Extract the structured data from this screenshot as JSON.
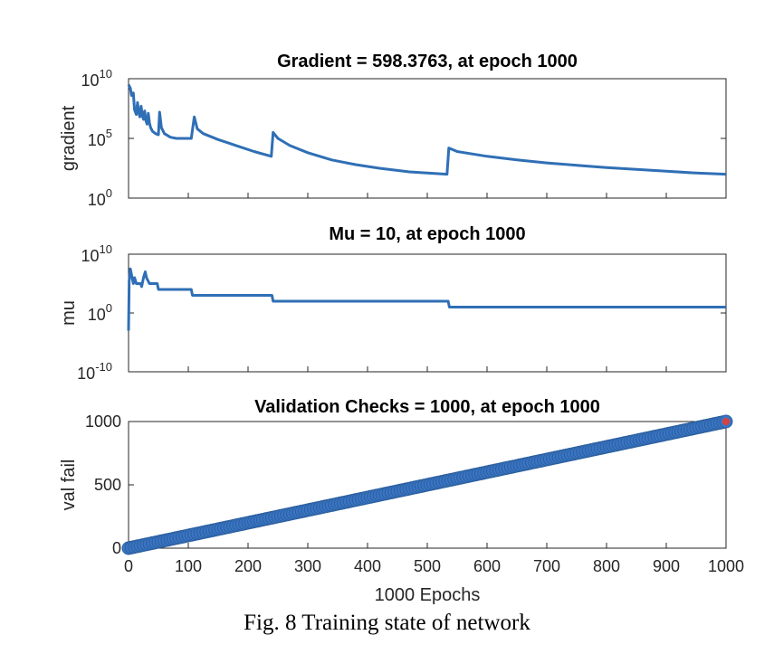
{
  "caption": "Fig. 8 Training state of network",
  "colors": {
    "line": "#2f6fb5",
    "marker": "#3a75c4",
    "last_point": "#d94040",
    "axis": "#262626"
  },
  "chart_data": [
    {
      "type": "line",
      "title": "Gradient = 598.3763, at epoch 1000",
      "ylabel": "gradient",
      "xlabel": "",
      "yscale": "log",
      "xlim": [
        0,
        1000
      ],
      "ylim_exponents": [
        0,
        10
      ],
      "ytick_labels": [
        {
          "base": "10",
          "exp": "0"
        },
        {
          "base": "10",
          "exp": "5"
        },
        {
          "base": "10",
          "exp": "10"
        }
      ],
      "x_tick_labels_visible": false,
      "grid": false,
      "log10_values": [
        [
          0,
          9.5
        ],
        [
          3,
          9.2
        ],
        [
          5,
          8.6
        ],
        [
          8,
          8.8
        ],
        [
          10,
          7.4
        ],
        [
          13,
          7.0
        ],
        [
          15,
          8.0
        ],
        [
          17,
          7.2
        ],
        [
          19,
          6.8
        ],
        [
          21,
          7.7
        ],
        [
          23,
          6.9
        ],
        [
          25,
          6.6
        ],
        [
          27,
          7.3
        ],
        [
          29,
          6.5
        ],
        [
          31,
          6.2
        ],
        [
          33,
          7.1
        ],
        [
          35,
          6.3
        ],
        [
          37,
          5.9
        ],
        [
          40,
          5.6
        ],
        [
          45,
          5.4
        ],
        [
          50,
          5.3
        ],
        [
          52,
          7.2
        ],
        [
          55,
          5.9
        ],
        [
          60,
          5.4
        ],
        [
          70,
          5.1
        ],
        [
          80,
          5.0
        ],
        [
          100,
          5.0
        ],
        [
          105,
          5.0
        ],
        [
          110,
          6.8
        ],
        [
          115,
          5.8
        ],
        [
          125,
          5.4
        ],
        [
          150,
          4.9
        ],
        [
          180,
          4.4
        ],
        [
          210,
          3.9
        ],
        [
          239,
          3.5
        ],
        [
          242,
          5.5
        ],
        [
          250,
          5.0
        ],
        [
          270,
          4.4
        ],
        [
          300,
          3.8
        ],
        [
          340,
          3.2
        ],
        [
          380,
          2.8
        ],
        [
          420,
          2.5
        ],
        [
          470,
          2.2
        ],
        [
          533,
          2.0
        ],
        [
          536,
          4.2
        ],
        [
          550,
          3.9
        ],
        [
          600,
          3.5
        ],
        [
          650,
          3.2
        ],
        [
          700,
          2.95
        ],
        [
          750,
          2.75
        ],
        [
          800,
          2.55
        ],
        [
          850,
          2.4
        ],
        [
          900,
          2.25
        ],
        [
          950,
          2.1
        ],
        [
          1000,
          2.0
        ]
      ]
    },
    {
      "type": "line",
      "title": "Mu = 10, at epoch 1000",
      "ylabel": "mu",
      "xlabel": "",
      "yscale": "log",
      "xlim": [
        0,
        1000
      ],
      "ylim_exponents": [
        -10,
        10
      ],
      "ytick_labels": [
        {
          "base": "10",
          "exp": "-10"
        },
        {
          "base": "10",
          "exp": "0"
        },
        {
          "base": "10",
          "exp": "10"
        }
      ],
      "x_tick_labels_visible": false,
      "grid": false,
      "log10_values": [
        [
          0,
          -3.0
        ],
        [
          1,
          5.5
        ],
        [
          3,
          7.5
        ],
        [
          5,
          6.5
        ],
        [
          8,
          5.0
        ],
        [
          10,
          6.0
        ],
        [
          13,
          5.0
        ],
        [
          20,
          5.0
        ],
        [
          22,
          4.5
        ],
        [
          25,
          6.0
        ],
        [
          28,
          7.0
        ],
        [
          30,
          6.0
        ],
        [
          35,
          5.0
        ],
        [
          40,
          5.0
        ],
        [
          48,
          5.0
        ],
        [
          50,
          4.0
        ],
        [
          100,
          4.0
        ],
        [
          105,
          4.0
        ],
        [
          107,
          3.0
        ],
        [
          240,
          3.0
        ],
        [
          242,
          2.0
        ],
        [
          535,
          2.0
        ],
        [
          537,
          1.0
        ],
        [
          1000,
          1.0
        ]
      ]
    },
    {
      "type": "scatter",
      "title": "Validation Checks = 1000, at epoch 1000",
      "ylabel": "val fail",
      "xlabel": "1000 Epochs",
      "yscale": "linear",
      "xlim": [
        0,
        1000
      ],
      "ylim": [
        0,
        1000
      ],
      "xticks": [
        0,
        100,
        200,
        300,
        400,
        500,
        600,
        700,
        800,
        900,
        1000
      ],
      "yticks": [
        0,
        500,
        1000
      ],
      "grid": false,
      "series": [
        {
          "values_rule": "val_fail = epoch for epoch 0..1000",
          "x_range": [
            0,
            1000
          ],
          "y_range": [
            0,
            1000
          ],
          "samples": 1001
        }
      ],
      "highlighted_point": [
        1000,
        1000
      ]
    }
  ]
}
